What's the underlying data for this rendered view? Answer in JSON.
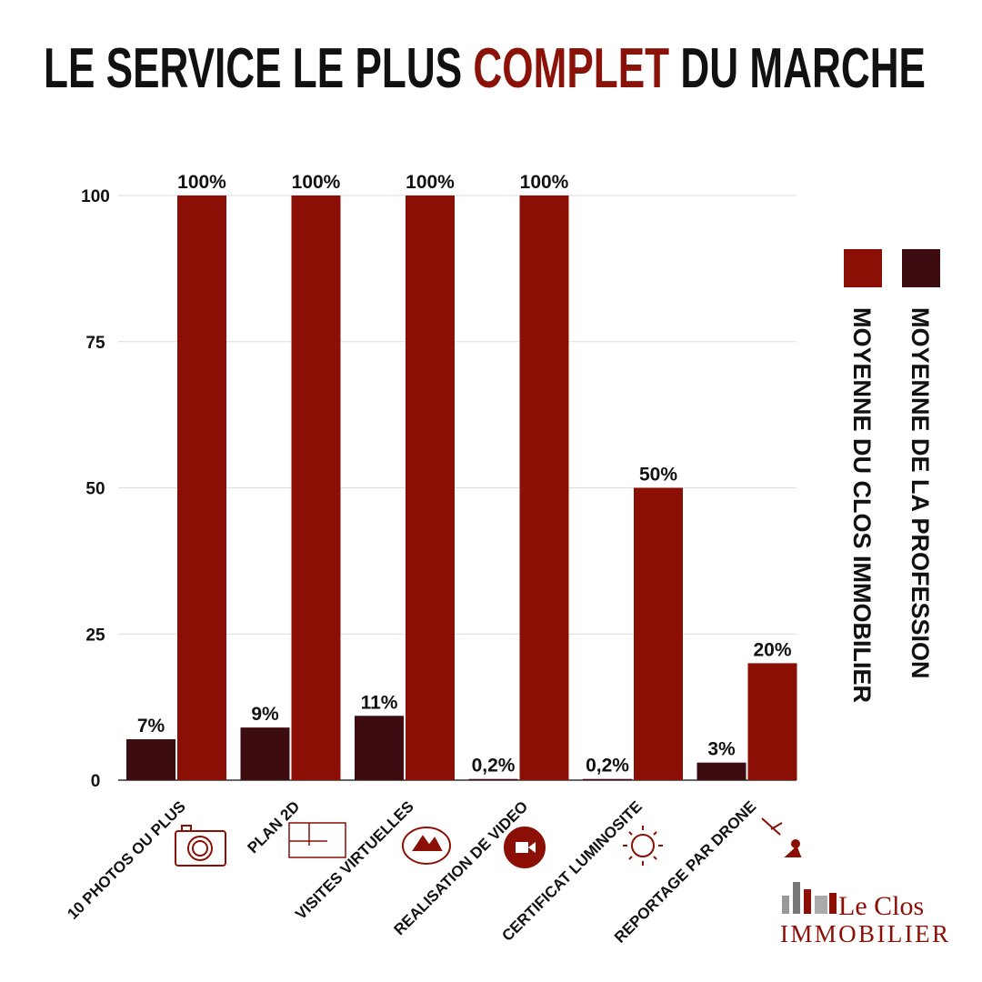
{
  "chart_data": {
    "type": "bar",
    "title": [
      "LE SERVICE LE PLUS",
      "COMPLET",
      "DU MARCHE"
    ],
    "title_highlight_color": "#8b1208",
    "categories": [
      "10 PHOTOS OU PLUS",
      "PLAN 2D",
      "VISITES VIRTUELLES",
      "REALISATION DE VIDEO",
      "CERTIFICAT LUMINOSITE",
      "REPORTAGE PAR DRONE"
    ],
    "series": [
      {
        "name": "MOYENNE DE LA PROFESSION",
        "color": "#3d0c10",
        "values": [
          7,
          9,
          11,
          0.2,
          0.2,
          3
        ],
        "value_labels": [
          "7%",
          "9%",
          "11%",
          "0,2%",
          "0,2%",
          "3%"
        ]
      },
      {
        "name": "MOYENNE DU CLOS IMMOBILIER",
        "color": "#8b0f05",
        "values": [
          100,
          100,
          100,
          100,
          50,
          20
        ],
        "value_labels": [
          "100%",
          "100%",
          "100%",
          "100%",
          "50%",
          "20%"
        ]
      }
    ],
    "ylim": [
      0,
      100
    ],
    "yticks": [
      0,
      25,
      50,
      75,
      100
    ],
    "grid": true,
    "legend": "right",
    "logo": {
      "line1": "Le Clos",
      "line2": "IMMOBILIER"
    }
  }
}
